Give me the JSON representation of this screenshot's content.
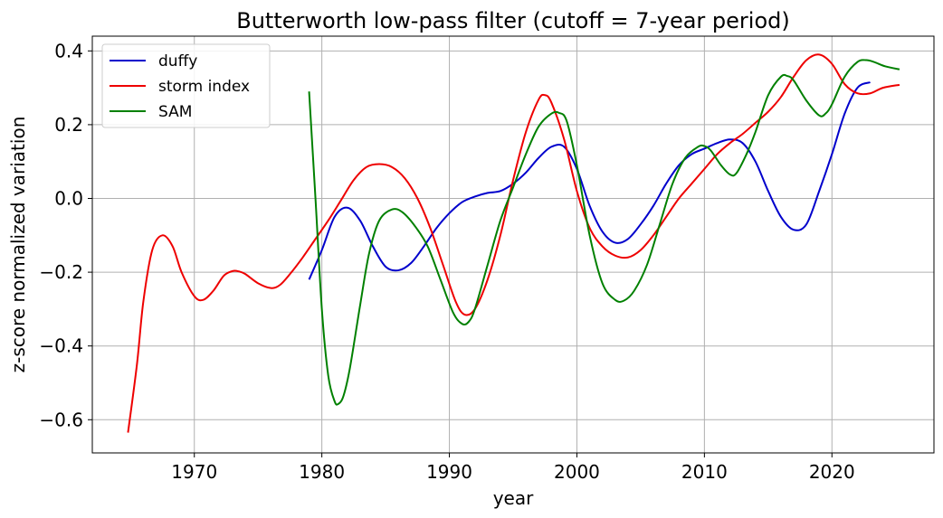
{
  "chart_data": {
    "type": "line",
    "title": "Butterworth low-pass filter (cutoff = 7-year period)",
    "xlabel": "year",
    "ylabel": "z-score normalized variation",
    "xlim": [
      1962,
      2028
    ],
    "ylim": [
      -0.69,
      0.44
    ],
    "xticks": [
      1970,
      1980,
      1990,
      2000,
      2010,
      2020
    ],
    "yticks": [
      -0.6,
      -0.4,
      -0.2,
      0.0,
      0.2,
      0.4
    ],
    "ytick_labels": [
      "−0.6",
      "−0.4",
      "−0.2",
      "0.0",
      "0.2",
      "0.4"
    ],
    "grid": true,
    "legend_position": "top-left",
    "series": [
      {
        "name": "duffy",
        "color": "#0000cc",
        "x": [
          1979,
          1980,
          1981,
          1982,
          1983,
          1984,
          1985,
          1986,
          1987,
          1988,
          1989,
          1990,
          1991,
          1992,
          1993,
          1994,
          1995,
          1996,
          1997,
          1998,
          1999,
          2000,
          2001,
          2002,
          2003,
          2004,
          2005,
          2006,
          2007,
          2008,
          2009,
          2010,
          2011,
          2012,
          2013,
          2014,
          2015,
          2016,
          2017,
          2018,
          2019,
          2020,
          2021,
          2022,
          2023
        ],
        "y": [
          -0.22,
          -0.14,
          -0.05,
          -0.025,
          -0.06,
          -0.13,
          -0.185,
          -0.195,
          -0.175,
          -0.13,
          -0.08,
          -0.04,
          -0.01,
          0.005,
          0.015,
          0.02,
          0.04,
          0.07,
          0.11,
          0.14,
          0.14,
          0.08,
          -0.02,
          -0.09,
          -0.12,
          -0.11,
          -0.07,
          -0.02,
          0.04,
          0.09,
          0.12,
          0.135,
          0.15,
          0.16,
          0.15,
          0.1,
          0.02,
          -0.05,
          -0.085,
          -0.07,
          0.02,
          0.12,
          0.23,
          0.3,
          0.315
        ]
      },
      {
        "name": "storm index",
        "color": "#ee0000",
        "x": [
          1964.8,
          1965.5,
          1966,
          1966.7,
          1967.5,
          1968.3,
          1969,
          1970,
          1970.7,
          1971.5,
          1972.3,
          1973,
          1973.5,
          1974,
          1975,
          1976,
          1976.7,
          1977.5,
          1978.5,
          1979.5,
          1980.5,
          1981.5,
          1982.5,
          1983.5,
          1984.5,
          1985.5,
          1986.5,
          1987.5,
          1988.5,
          1989.5,
          1990.5,
          1991.2,
          1992,
          1993,
          1994,
          1995,
          1996,
          1997,
          1997.5,
          1998,
          1999,
          2000,
          2001,
          2002,
          2003,
          2004,
          2005,
          2006,
          2007,
          2008,
          2009,
          2010,
          2011,
          2012,
          2013,
          2014,
          2015,
          2016,
          2017,
          2018,
          2019,
          2020,
          2021,
          2022,
          2023,
          2024,
          2025.3
        ],
        "y": [
          -0.635,
          -0.45,
          -0.28,
          -0.14,
          -0.1,
          -0.13,
          -0.2,
          -0.265,
          -0.275,
          -0.25,
          -0.21,
          -0.197,
          -0.198,
          -0.205,
          -0.23,
          -0.243,
          -0.235,
          -0.205,
          -0.16,
          -0.11,
          -0.06,
          -0.005,
          0.05,
          0.085,
          0.093,
          0.085,
          0.055,
          0.0,
          -0.08,
          -0.18,
          -0.28,
          -0.315,
          -0.3,
          -0.22,
          -0.1,
          0.05,
          0.18,
          0.268,
          0.28,
          0.26,
          0.16,
          0.02,
          -0.08,
          -0.13,
          -0.155,
          -0.16,
          -0.14,
          -0.1,
          -0.05,
          0.0,
          0.04,
          0.08,
          0.12,
          0.15,
          0.175,
          0.205,
          0.235,
          0.275,
          0.33,
          0.375,
          0.39,
          0.365,
          0.31,
          0.285,
          0.285,
          0.3,
          0.308
        ]
      },
      {
        "name": "SAM",
        "color": "#008000",
        "x": [
          1979,
          1979.5,
          1980,
          1980.5,
          1981,
          1981.3,
          1981.7,
          1982.2,
          1983,
          1983.7,
          1984.5,
          1985.5,
          1986.3,
          1987.3,
          1988.3,
          1989.3,
          1990.3,
          1991,
          1991.5,
          1992,
          1993,
          1994,
          1995,
          1996,
          1997,
          1998,
          1998.6,
          1999.2,
          2000,
          2001,
          2002,
          2003,
          2003.7,
          2004.5,
          2005.5,
          2006.5,
          2007.5,
          2008.5,
          2009.5,
          2010,
          2010.5,
          2011.3,
          2012,
          2012.5,
          2013.3,
          2014,
          2015,
          2016,
          2016.5,
          2017,
          2018,
          2019,
          2019.5,
          2020,
          2021,
          2022,
          2022.7,
          2023.3,
          2024.2,
          2025.3
        ],
        "y": [
          0.29,
          0.0,
          -0.3,
          -0.48,
          -0.55,
          -0.557,
          -0.535,
          -0.46,
          -0.29,
          -0.15,
          -0.06,
          -0.03,
          -0.037,
          -0.075,
          -0.13,
          -0.22,
          -0.31,
          -0.34,
          -0.335,
          -0.3,
          -0.18,
          -0.06,
          0.03,
          0.12,
          0.195,
          0.23,
          0.232,
          0.21,
          0.09,
          -0.1,
          -0.23,
          -0.275,
          -0.277,
          -0.25,
          -0.18,
          -0.07,
          0.04,
          0.11,
          0.14,
          0.142,
          0.13,
          0.09,
          0.065,
          0.068,
          0.12,
          0.18,
          0.28,
          0.33,
          0.332,
          0.32,
          0.265,
          0.225,
          0.23,
          0.255,
          0.33,
          0.37,
          0.375,
          0.37,
          0.358,
          0.35
        ]
      }
    ]
  }
}
